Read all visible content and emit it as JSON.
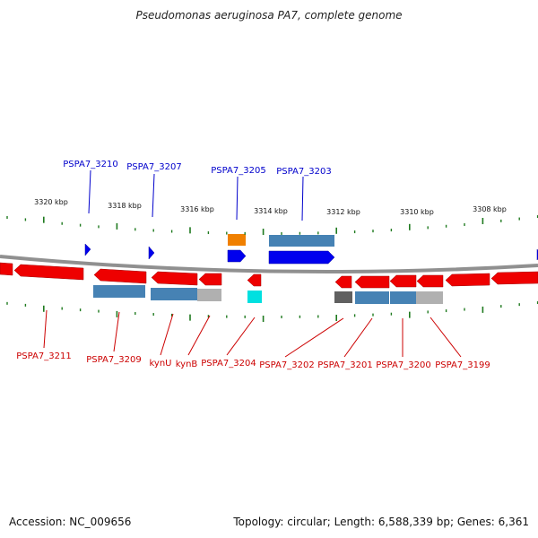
{
  "title": "Pseudomonas aeruginosa PA7, complete genome",
  "footer": {
    "accession_label": "Accession:",
    "accession": "NC_009656",
    "topology_label": "Topology:",
    "topology": "circular",
    "length_label": "Length:",
    "length": "6,588,339 bp",
    "genes_label": "Genes:",
    "genes": "6,361"
  },
  "colors": {
    "forward_gene": "#0000ee",
    "reverse_gene": "#ee0000",
    "forward_label": "#0000cc",
    "reverse_label": "#cc0000",
    "tick": "#1f7a1f",
    "backbone": "#909090",
    "domain_blue": "#4682b4",
    "domain_grey": "#b0b0b0",
    "domain_dark": "#606060",
    "domain_orange": "#f08000",
    "domain_cyan": "#00e0e0"
  },
  "ticks": [
    "3320 kbp",
    "3318 kbp",
    "3316 kbp",
    "3314 kbp",
    "3312 kbp",
    "3310 kbp",
    "3308 kbp"
  ],
  "forward_genes": [
    "PSPA7_3210",
    "PSPA7_3207",
    "PSPA7_3205",
    "PSPA7_3203"
  ],
  "reverse_genes": [
    "PSPA7_3211",
    "PSPA7_3209",
    "kynU",
    "kynB",
    "PSPA7_3204",
    "PSPA7_3202",
    "PSPA7_3201",
    "PSPA7_3200",
    "PSPA7_3199"
  ]
}
